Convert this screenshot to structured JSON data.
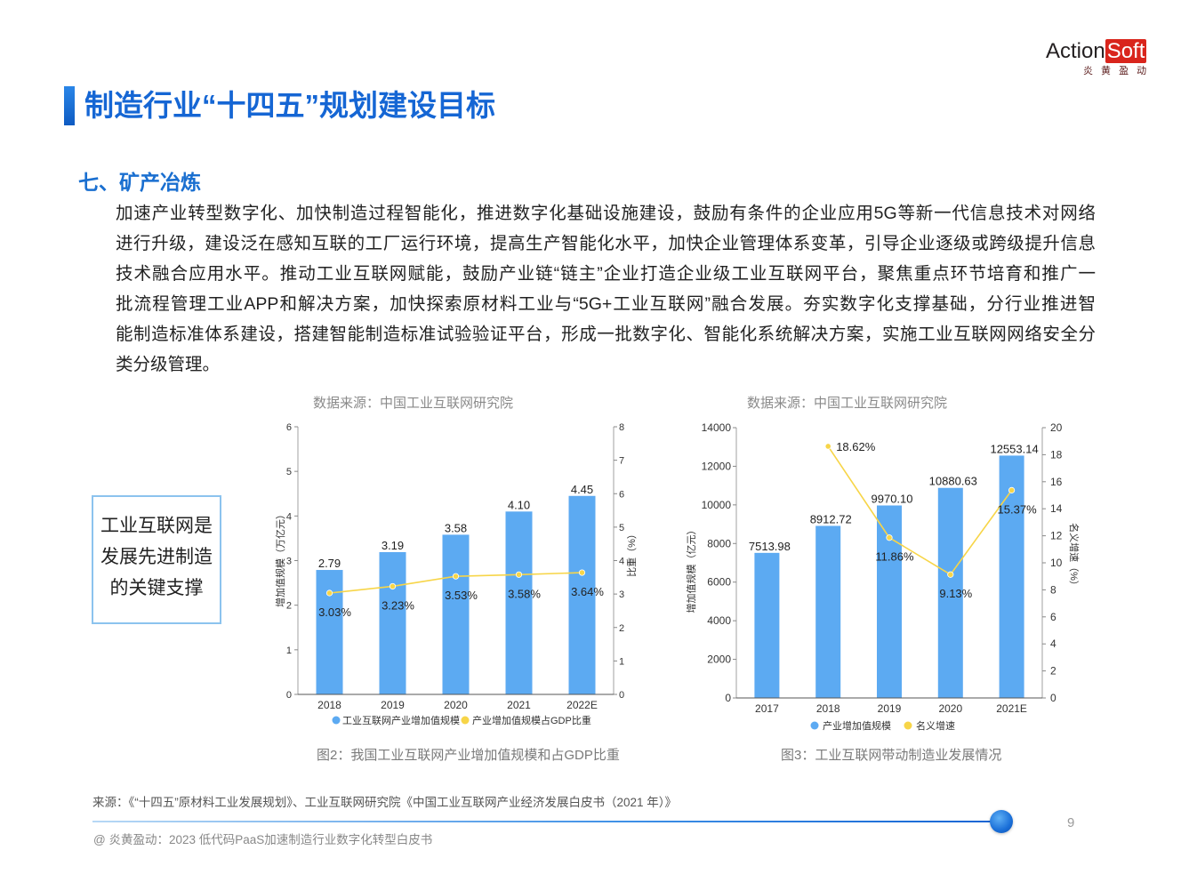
{
  "logo": {
    "action": "Action",
    "soft": "Soft",
    "tagline": "炎 黄 盈 动"
  },
  "page_title": "制造行业“十四五”规划建设目标",
  "section_heading": "七、矿产冶炼",
  "paragraph": {
    "lines": [
      "加速产业转型数字化、加快制造过程智能化，推进数字化基础设施建设，鼓励有条件的企业应用5G等新一代信息技术对网络",
      "进行升级，建设泛在感知互联的工厂运行环境，提高生产智能化水平，加快企业管理体系变革，引导企业逐级或跨级提升信息",
      "技术融合应用水平。推动工业互联网赋能，鼓励产业链“链主”企业打造企业级工业互联网平台，聚焦重点环节培育和推广一",
      "批流程管理工业APP和解决方案，加快探索原材料工业与“5G+工业互联网”融合发展。夯实数字化支撑基础，分行业推进智",
      "能制造标准体系建设，搭建智能制造标准试验验证平台，形成一批数字化、智能化系统解决方案，实施工业互联网网络安全分",
      "类分级管理。"
    ]
  },
  "callout": {
    "lines": [
      "工业互联网是",
      "发展先进制造",
      "的关键支撑"
    ]
  },
  "figures": [
    {
      "source": "数据来源：中国工业互联网研究院",
      "caption": "图2：我国工业互联网产业增加值规模和占GDP比重"
    },
    {
      "source": "数据来源：中国工业互联网研究院",
      "caption": "图3：工业互联网带动制造业发展情况"
    }
  ],
  "colors": {
    "accent": "#1566d4",
    "bar": "#5caaf2",
    "line": "#f7d548"
  },
  "chart_data": [
    {
      "type": "bar",
      "categories": [
        "2018",
        "2019",
        "2020",
        "2021",
        "2022E"
      ],
      "series": [
        {
          "name": "工业互联网产业增加值规模",
          "type": "bar",
          "axis": "left",
          "values": [
            2.79,
            3.19,
            3.58,
            4.1,
            4.45
          ],
          "labels": [
            "2.79",
            "3.19",
            "3.58",
            "4.10",
            "4.45"
          ]
        },
        {
          "name": "产业增加值规模占GDP比重",
          "type": "line",
          "axis": "right",
          "values": [
            3.03,
            3.23,
            3.53,
            3.58,
            3.64
          ],
          "labels": [
            "3.03%",
            "3.23%",
            "3.53%",
            "3.58%",
            "3.64%"
          ]
        }
      ],
      "ylabel": "增加值规模（万亿元）",
      "y2label": "比重（%）",
      "ylim": [
        0,
        6
      ],
      "yticks": [
        0,
        1,
        2,
        3,
        4,
        5,
        6
      ],
      "y2lim": [
        0,
        8
      ],
      "y2ticks": [
        0,
        1,
        2,
        3,
        4,
        5,
        6,
        7,
        8
      ],
      "legend": "bottom",
      "grid": false
    },
    {
      "type": "bar",
      "categories": [
        "2017",
        "2018",
        "2019",
        "2020",
        "2021E"
      ],
      "series": [
        {
          "name": "产业增加值规模",
          "type": "bar",
          "axis": "left",
          "values": [
            7513.98,
            8912.72,
            9970.1,
            10880.63,
            12553.14
          ],
          "labels": [
            "7513.98",
            "8912.72",
            "9970.10",
            "10880.63",
            "12553.14"
          ]
        },
        {
          "name": "名义增速",
          "type": "line",
          "axis": "right",
          "values": [
            null,
            18.62,
            11.86,
            9.13,
            15.37
          ],
          "labels": [
            null,
            "18.62%",
            "11.86%",
            "9.13%",
            "15.37%"
          ]
        }
      ],
      "ylabel": "增加值规模（亿元）",
      "y2label": "名义增速（%）",
      "ylim": [
        0,
        14000
      ],
      "yticks": [
        0,
        2000,
        4000,
        6000,
        8000,
        10000,
        12000,
        14000
      ],
      "y2lim": [
        0,
        20
      ],
      "y2ticks": [
        0,
        2,
        4,
        6,
        8,
        10,
        12,
        14,
        16,
        18,
        20
      ],
      "legend": "bottom",
      "grid": false
    }
  ],
  "footer": {
    "source_note": "来源：《“十四五”原材料工业发展规划》、工业互联网研究院《中国工业互联网产业经济发展白皮书（2021 年）》",
    "page_number": "9",
    "copyright": "@ 炎黄盈动：2023 低代码PaaS加速制造行业数字化转型白皮书"
  }
}
